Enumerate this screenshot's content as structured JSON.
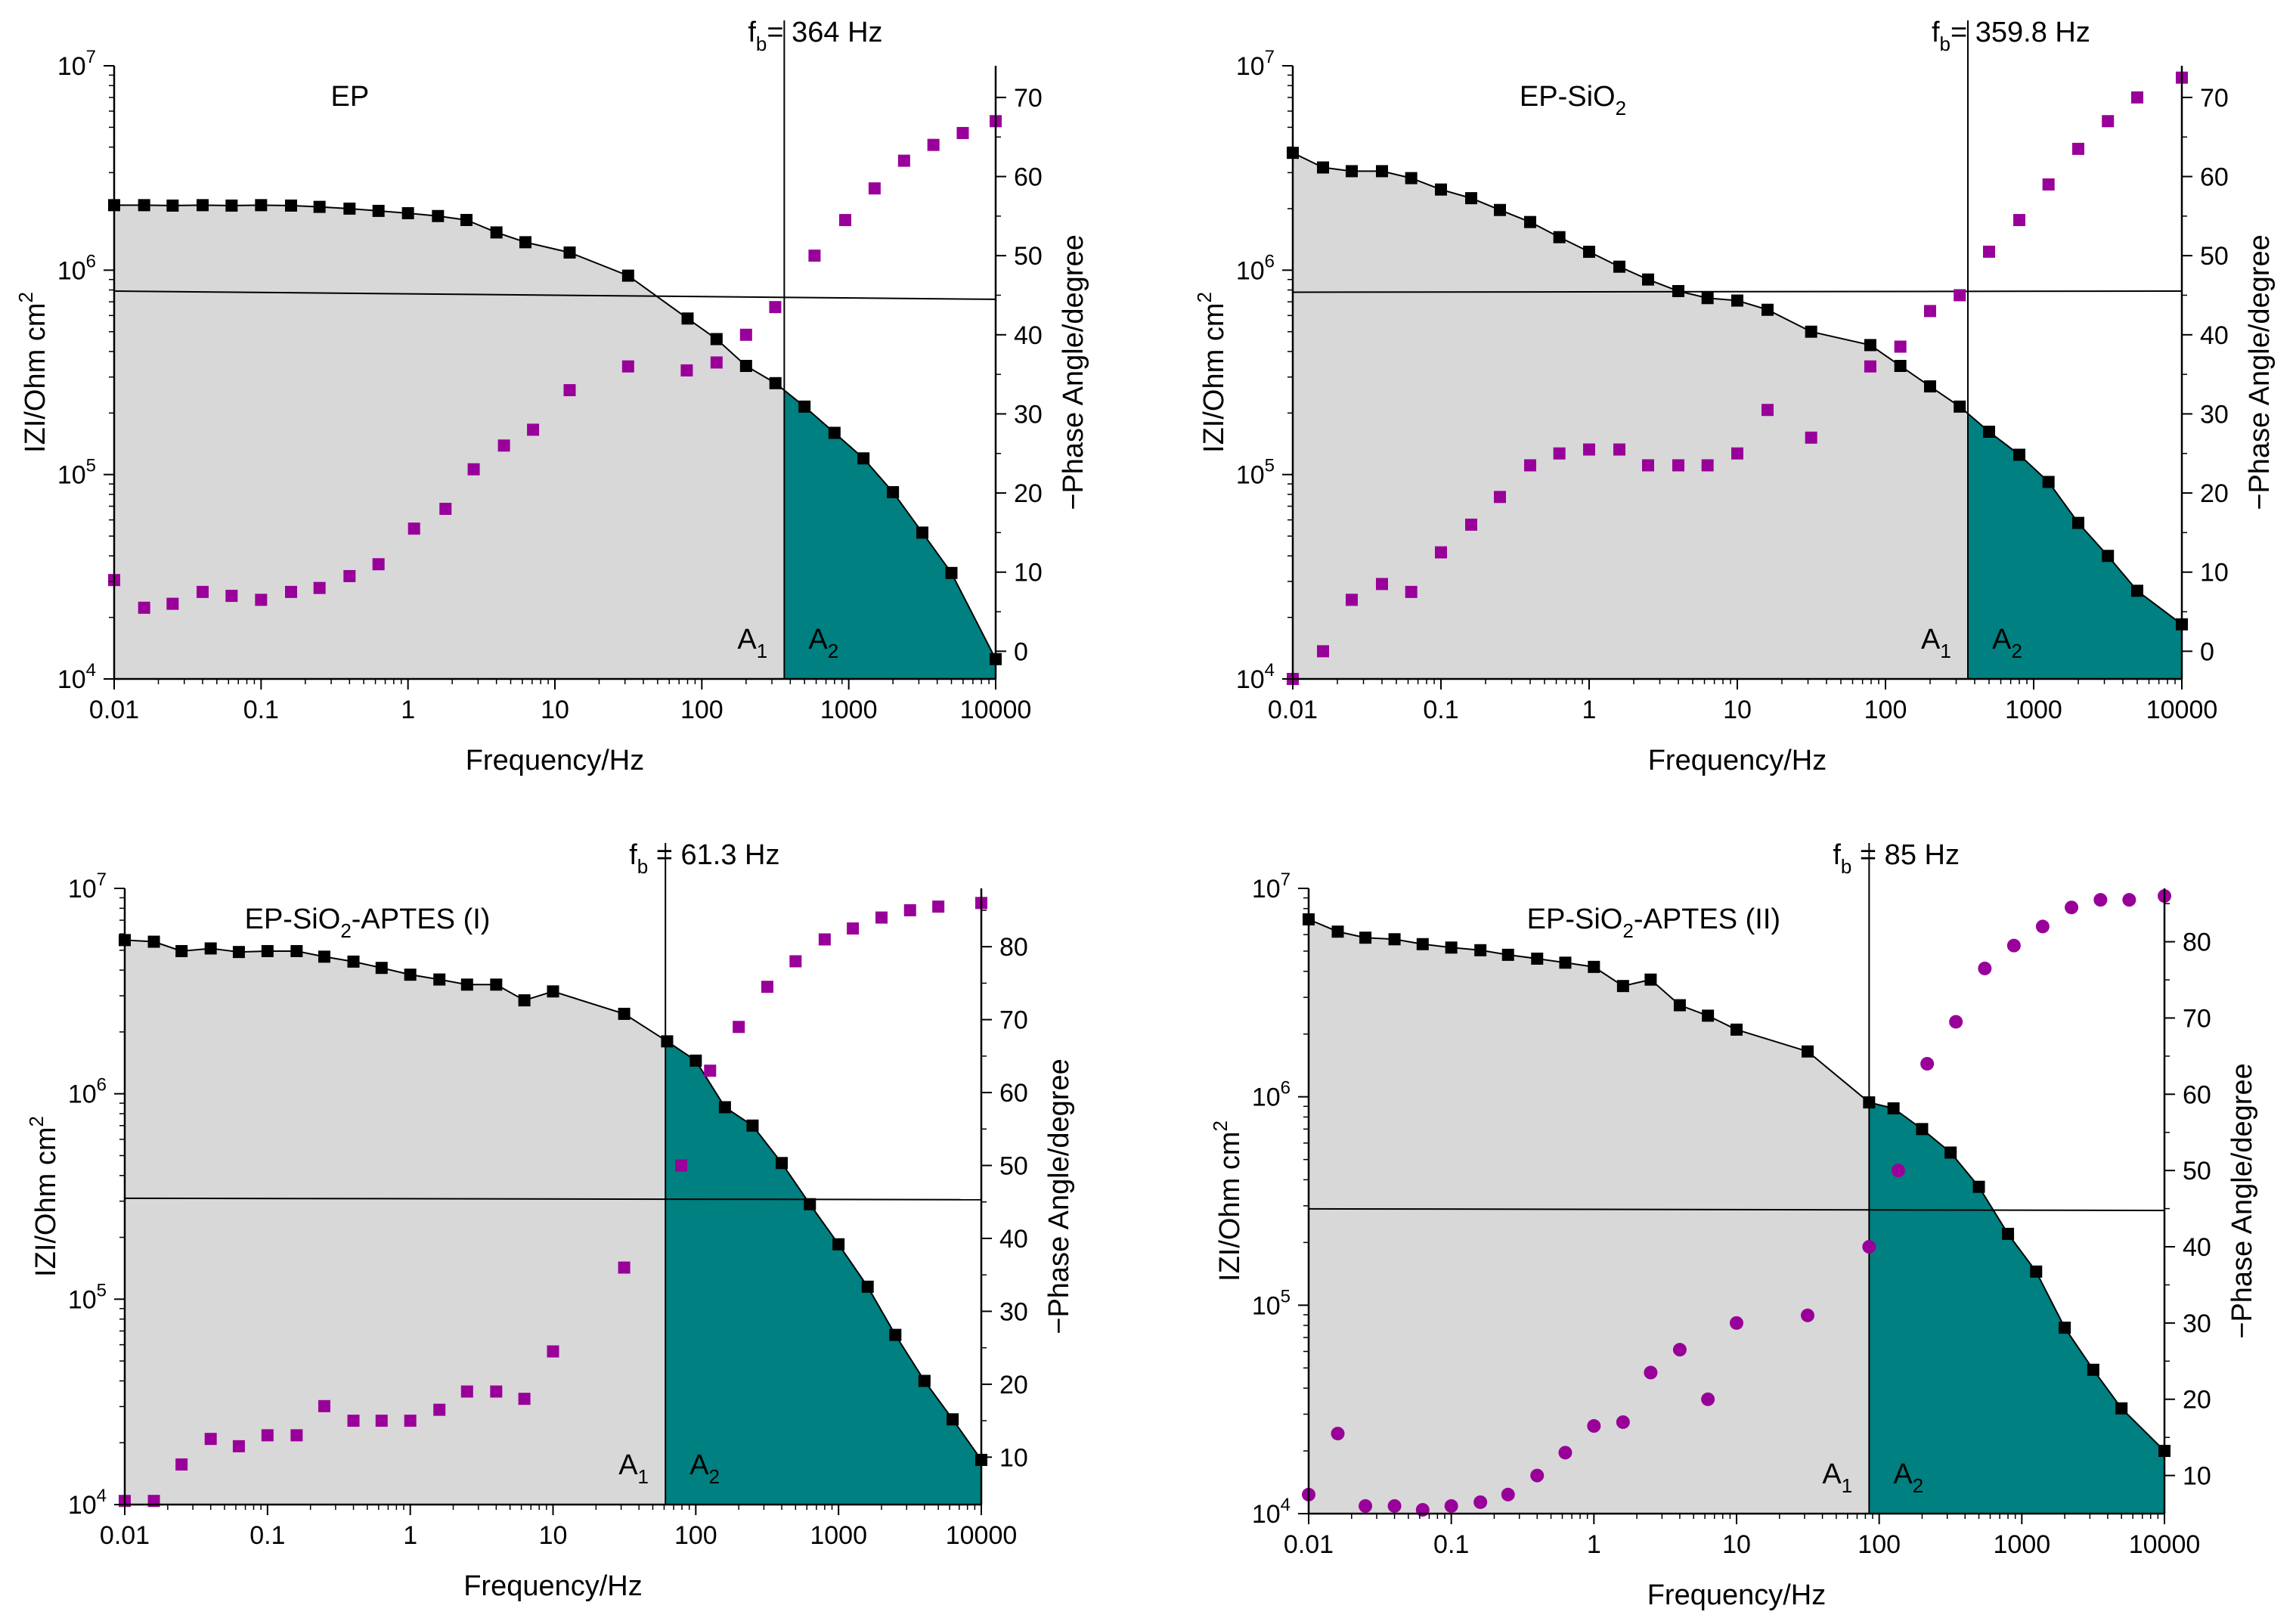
{
  "figure": {
    "colors": {
      "gray_fill": "#d8d8d8",
      "teal_fill": "#008080",
      "mag_marker": "#990099",
      "black": "#000000"
    }
  },
  "chart_data": [
    {
      "type": "scatter",
      "id": "ep",
      "title": "EP",
      "title_sub": "",
      "title_tail": "",
      "fb_prefix": "f",
      "fb_sub": "b",
      "fb_suffix": "= 364 Hz",
      "fb_value": 364,
      "xlabel": "Frequency/Hz",
      "ylabel": "IZI/Ohm cm",
      "ylabel_sup": "2",
      "y2label": "−Phase Angle/degree",
      "xlim": [
        0.01,
        10000
      ],
      "ylim_exp": [
        4,
        7
      ],
      "y2lim": [
        -3.5,
        74
      ],
      "x_tick_labels": [
        "0.01",
        "0.1",
        "1",
        "10",
        "100",
        "1000",
        "10000"
      ],
      "y_tick_base": "10",
      "y_tick_exps": [
        "4",
        "5",
        "6",
        "7"
      ],
      "y2_ticks": [
        0,
        10,
        20,
        30,
        40,
        50,
        60,
        70
      ],
      "y2_tick_labels": [
        "0",
        "10",
        "20",
        "30",
        "40",
        "50",
        "60",
        "70"
      ],
      "phase45_y": [
        790000,
        720000
      ],
      "area_labels": [
        {
          "main": "A",
          "sub": "1"
        },
        {
          "main": "A",
          "sub": "2"
        }
      ],
      "phase_marker": "square",
      "series": [
        {
          "name": "|Z|",
          "x": [
            0.01,
            0.016,
            0.025,
            0.04,
            0.063,
            0.1,
            0.16,
            0.25,
            0.4,
            0.63,
            1,
            1.6,
            2.5,
            4,
            6.3,
            12.6,
            31.5,
            80,
            126,
            200,
            317,
            500,
            800,
            1260,
            2000,
            3170,
            5000,
            10000
          ],
          "y": [
            2080000,
            2080000,
            2070000,
            2080000,
            2070000,
            2080000,
            2070000,
            2040000,
            2000000,
            1950000,
            1900000,
            1840000,
            1760000,
            1530000,
            1370000,
            1220000,
            940000,
            580000,
            460000,
            340000,
            280000,
            215000,
            160000,
            120000,
            82000,
            52000,
            33000,
            12500
          ]
        },
        {
          "name": "-Phase",
          "x": [
            0.01,
            0.016,
            0.025,
            0.04,
            0.063,
            0.1,
            0.16,
            0.25,
            0.4,
            0.63,
            1.1,
            1.8,
            2.8,
            4.5,
            7.1,
            12.6,
            31.5,
            79,
            126,
            200,
            316,
            585,
            946,
            1500,
            2380,
            3770,
            5970,
            10000
          ],
          "y": [
            9,
            5.5,
            6,
            7.5,
            7,
            6.5,
            7.5,
            8,
            9.5,
            11,
            15.5,
            18,
            23,
            26,
            28,
            33,
            36,
            35.5,
            36.5,
            40,
            43.5,
            50,
            54.5,
            58.5,
            62,
            64,
            65.5,
            67
          ]
        }
      ]
    },
    {
      "type": "scatter",
      "id": "ep-sio2",
      "title": "EP-SiO",
      "title_sub": "2",
      "title_tail": "",
      "fb_prefix": "f",
      "fb_sub": "b",
      "fb_suffix": "= 359.8 Hz",
      "fb_value": 359.8,
      "xlabel": "Frequency/Hz",
      "ylabel": "IZI/Ohm cm",
      "ylabel_sup": "2",
      "y2label": "−Phase Angle/degree",
      "xlim": [
        0.01,
        10000
      ],
      "ylim_exp": [
        4,
        7
      ],
      "y2lim": [
        -3.5,
        74
      ],
      "x_tick_labels": [
        "0.01",
        "0.1",
        "1",
        "10",
        "100",
        "1000",
        "10000"
      ],
      "y_tick_base": "10",
      "y_tick_exps": [
        "4",
        "5",
        "6",
        "7"
      ],
      "y2_ticks": [
        0,
        10,
        20,
        30,
        40,
        50,
        60,
        70
      ],
      "y2_tick_labels": [
        "0",
        "10",
        "20",
        "30",
        "40",
        "50",
        "60",
        "70"
      ],
      "phase45_y": [
        780000,
        790000
      ],
      "area_labels": [
        {
          "main": "A",
          "sub": "1"
        },
        {
          "main": "A",
          "sub": "2"
        }
      ],
      "phase_marker": "square",
      "series": [
        {
          "name": "|Z|",
          "x": [
            0.01,
            0.016,
            0.025,
            0.04,
            0.063,
            0.1,
            0.16,
            0.25,
            0.4,
            0.63,
            1,
            1.6,
            2.5,
            4,
            6.3,
            10,
            16,
            31.5,
            79,
            126,
            200,
            317,
            500,
            800,
            1260,
            2000,
            3170,
            5000,
            10000
          ],
          "y": [
            3750000,
            3180000,
            3050000,
            3050000,
            2820000,
            2480000,
            2250000,
            1970000,
            1720000,
            1450000,
            1230000,
            1040000,
            900000,
            790000,
            730000,
            710000,
            640000,
            500000,
            430000,
            340000,
            270000,
            215000,
            162000,
            125000,
            92000,
            58000,
            40000,
            27000,
            18500
          ]
        },
        {
          "name": "-Phase",
          "x": [
            0.01,
            0.016,
            0.025,
            0.04,
            0.063,
            0.1,
            0.16,
            0.25,
            0.4,
            0.63,
            1,
            1.6,
            2.5,
            4,
            6.3,
            10,
            16,
            31.5,
            79,
            126,
            200,
            317,
            500,
            800,
            1260,
            2000,
            3170,
            5000,
            10000
          ],
          "y": [
            -3.5,
            0,
            6.5,
            8.5,
            7.5,
            12.5,
            16,
            19.5,
            23.5,
            25,
            25.5,
            25.5,
            23.5,
            23.5,
            23.5,
            25,
            30.5,
            27,
            36,
            38.5,
            43,
            45,
            50.5,
            54.5,
            59,
            63.5,
            67,
            70,
            72.5
          ]
        }
      ]
    },
    {
      "type": "scatter",
      "id": "ep-sio2-aptes-i",
      "title": "EP-SiO",
      "title_sub": "2",
      "title_tail": "-APTES (I)",
      "fb_prefix": "f",
      "fb_sub": "b",
      "fb_suffix": " = 61.3 Hz",
      "fb_value": 61.3,
      "xlabel": "Frequency/Hz",
      "ylabel": "IZI/Ohm cm",
      "ylabel_sup": "2",
      "y2label": "−Phase Angle/degree",
      "xlim": [
        0.01,
        10000
      ],
      "ylim_exp": [
        4,
        7
      ],
      "y2lim": [
        3.5,
        88
      ],
      "x_tick_labels": [
        "0.01",
        "0.1",
        "1",
        "10",
        "100",
        "1000",
        "10000"
      ],
      "y_tick_base": "10",
      "y_tick_exps": [
        "4",
        "5",
        "6",
        "7"
      ],
      "y2_ticks": [
        10,
        20,
        30,
        40,
        50,
        60,
        70,
        80
      ],
      "y2_tick_labels": [
        "10",
        "20",
        "30",
        "40",
        "50",
        "60",
        "70",
        "80"
      ],
      "phase45_y": [
        310000,
        305000
      ],
      "area_labels": [
        {
          "main": "A",
          "sub": "1"
        },
        {
          "main": "A",
          "sub": "2"
        }
      ],
      "phase_marker": "square",
      "series": [
        {
          "name": "|Z|",
          "x": [
            0.01,
            0.016,
            0.025,
            0.04,
            0.063,
            0.1,
            0.16,
            0.25,
            0.4,
            0.63,
            1,
            1.6,
            2.5,
            4,
            6.3,
            10,
            31.5,
            63,
            100,
            160,
            250,
            400,
            630,
            1000,
            1600,
            2500,
            4000,
            6300,
            10000
          ],
          "y": [
            5600000,
            5500000,
            4950000,
            5100000,
            4900000,
            4950000,
            4950000,
            4650000,
            4400000,
            4100000,
            3800000,
            3600000,
            3400000,
            3400000,
            2850000,
            3150000,
            2450000,
            1800000,
            1450000,
            860000,
            700000,
            460000,
            290000,
            185000,
            115000,
            67000,
            40000,
            26000,
            16500
          ]
        },
        {
          "name": "-Phase",
          "x": [
            0.01,
            0.016,
            0.025,
            0.04,
            0.063,
            0.1,
            0.16,
            0.25,
            0.4,
            0.63,
            1,
            1.6,
            2.5,
            4,
            6.3,
            10,
            31.5,
            79,
            126,
            200,
            317,
            500,
            800,
            1260,
            2000,
            3170,
            5000,
            10000
          ],
          "y": [
            4,
            4,
            9,
            12.5,
            11.5,
            13,
            13,
            17,
            15,
            15,
            15,
            16.5,
            19,
            19,
            18,
            24.5,
            36,
            50,
            63,
            69,
            74.5,
            78,
            81,
            82.5,
            84,
            85,
            85.5,
            86
          ]
        }
      ]
    },
    {
      "type": "scatter",
      "id": "ep-sio2-aptes-ii",
      "title": "EP-SiO",
      "title_sub": "2",
      "title_tail": "-APTES (II)",
      "fb_prefix": "f",
      "fb_sub": "b",
      "fb_suffix": " = 85 Hz",
      "fb_value": 85,
      "xlabel": "Frequency/Hz",
      "ylabel": "IZI/Ohm cm",
      "ylabel_sup": "2",
      "y2label": "−Phase Angle/degree",
      "xlim": [
        0.01,
        10000
      ],
      "ylim_exp": [
        4,
        7
      ],
      "y2lim": [
        5,
        87
      ],
      "x_tick_labels": [
        "0.01",
        "0.1",
        "1",
        "10",
        "100",
        "1000",
        "10000"
      ],
      "y_tick_base": "10",
      "y_tick_exps": [
        "4",
        "5",
        "6",
        "7"
      ],
      "y2_ticks": [
        10,
        20,
        30,
        40,
        50,
        60,
        70,
        80
      ],
      "y2_tick_labels": [
        "10",
        "20",
        "30",
        "40",
        "50",
        "60",
        "70",
        "80"
      ],
      "phase45_y": [
        290000,
        285000
      ],
      "area_labels": [
        {
          "main": "A",
          "sub": "1"
        },
        {
          "main": "A",
          "sub": "2"
        }
      ],
      "phase_marker": "circle",
      "series": [
        {
          "name": "|Z|",
          "x": [
            0.01,
            0.016,
            0.025,
            0.04,
            0.063,
            0.1,
            0.16,
            0.25,
            0.4,
            0.63,
            1,
            1.6,
            2.5,
            4,
            6.3,
            10,
            31.5,
            85,
            126,
            200,
            317,
            500,
            800,
            1260,
            2000,
            3170,
            5000,
            10000
          ],
          "y": [
            7100000,
            6200000,
            5800000,
            5700000,
            5400000,
            5200000,
            5050000,
            4800000,
            4600000,
            4400000,
            4200000,
            3400000,
            3650000,
            2750000,
            2450000,
            2100000,
            1650000,
            940000,
            880000,
            700000,
            540000,
            370000,
            220000,
            145000,
            78000,
            49000,
            32000,
            20000
          ]
        },
        {
          "name": "-Phase",
          "x": [
            0.01,
            0.016,
            0.025,
            0.04,
            0.063,
            0.1,
            0.16,
            0.25,
            0.4,
            0.63,
            1,
            1.6,
            2.5,
            4,
            6.3,
            10,
            31.5,
            85,
            136,
            217,
            345,
            550,
            880,
            1400,
            2230,
            3560,
            5660,
            10000
          ],
          "y": [
            7.5,
            15.5,
            6,
            6,
            5.5,
            6,
            6.5,
            7.5,
            10,
            13,
            16.5,
            17,
            23.5,
            26.5,
            20,
            30,
            31,
            40,
            50,
            64,
            69.5,
            76.5,
            79.5,
            82,
            84.5,
            85.5,
            85.5,
            86
          ]
        }
      ]
    }
  ]
}
